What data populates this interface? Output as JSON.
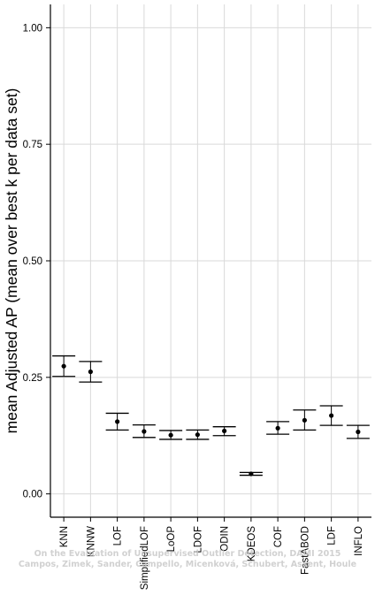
{
  "chart_data": {
    "type": "errorbar",
    "ylabel": "mean Adjusted AP (mean over best k per data set)",
    "xlabel": "",
    "ylim": [
      -0.05,
      1.05
    ],
    "yticks": [
      0.0,
      0.25,
      0.5,
      0.75,
      1.0
    ],
    "ytick_labels": [
      "0.00",
      "0.25",
      "0.50",
      "0.75",
      "1.00"
    ],
    "grid": true,
    "categories": [
      "KNN",
      "KNNW",
      "LOF",
      "SimplifiedLOF",
      "LoOP",
      "LDOF",
      "ODIN",
      "KDEOS",
      "COF",
      "FastABOD",
      "LDF",
      "INFLO"
    ],
    "mean": [
      0.274,
      0.262,
      0.155,
      0.134,
      0.126,
      0.127,
      0.135,
      0.043,
      0.141,
      0.158,
      0.168,
      0.133
    ],
    "upper": [
      0.296,
      0.284,
      0.173,
      0.148,
      0.136,
      0.137,
      0.144,
      0.046,
      0.155,
      0.18,
      0.189,
      0.147
    ],
    "lower": [
      0.252,
      0.24,
      0.137,
      0.121,
      0.117,
      0.117,
      0.125,
      0.04,
      0.128,
      0.137,
      0.147,
      0.119
    ]
  },
  "watermark": {
    "line1": "On the Evaluation of Unsupervised Outlier Detection, DAMI 2015",
    "line2": "Campos, Zimek, Sander, Campello, Micenková, Schubert, Assent, Houle"
  },
  "colors": {
    "grid": "#d9d9d9",
    "axis": "#000000",
    "marker": "#000000"
  }
}
